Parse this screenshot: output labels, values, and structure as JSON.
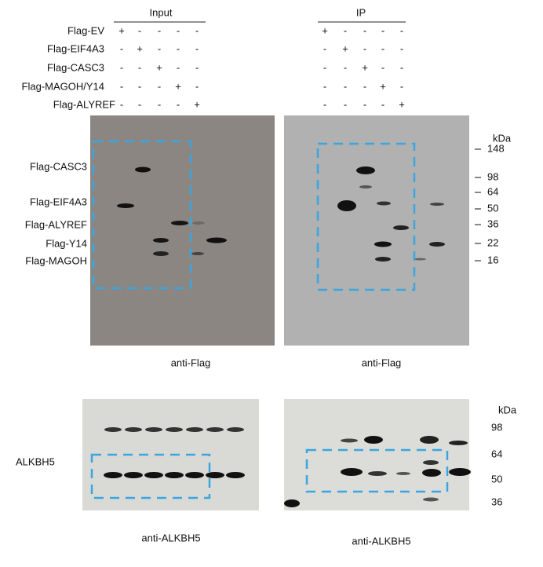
{
  "header": {
    "input": "Input",
    "ip": "IP"
  },
  "conditions": {
    "rows": [
      {
        "label": "Flag-EV",
        "input": [
          "+",
          "-",
          "-",
          "-",
          "-"
        ],
        "ip": [
          "+",
          "-",
          "-",
          "-",
          "-"
        ]
      },
      {
        "label": "Flag-EIF4A3",
        "input": [
          "-",
          "+",
          "-",
          "-",
          "-"
        ],
        "ip": [
          "-",
          "+",
          "-",
          "-",
          "-"
        ]
      },
      {
        "label": "Flag-CASC3",
        "input": [
          "-",
          "-",
          "+",
          "-",
          "-"
        ],
        "ip": [
          "-",
          "-",
          "+",
          "-",
          "-"
        ]
      },
      {
        "label": "Flag-MAGOH/Y14",
        "input": [
          "-",
          "-",
          "-",
          "+",
          "-"
        ],
        "ip": [
          "-",
          "-",
          "-",
          "+",
          "-"
        ]
      },
      {
        "label": "Flag-ALYREF",
        "input": [
          "-",
          "-",
          "-",
          "-",
          "+"
        ],
        "ip": [
          "-",
          "-",
          "-",
          "-",
          "+"
        ]
      }
    ]
  },
  "top_blots": {
    "band_labels": [
      "Flag-CASC3",
      "Flag-EIF4A3",
      "Flag-ALYREF",
      "Flag-Y14",
      "Flag-MAGOH"
    ],
    "kda_unit": "kDa",
    "markers": [
      "148",
      "98",
      "64",
      "50",
      "36",
      "22",
      "16"
    ],
    "antibody_left": "anti-Flag",
    "antibody_right": "anti-Flag"
  },
  "bottom_blots": {
    "target": "ALKBH5",
    "kda_unit": "kDa",
    "markers": [
      "98",
      "64",
      "50",
      "36"
    ],
    "antibody_left": "anti-ALKBH5",
    "antibody_right": "anti-ALKBH5"
  }
}
